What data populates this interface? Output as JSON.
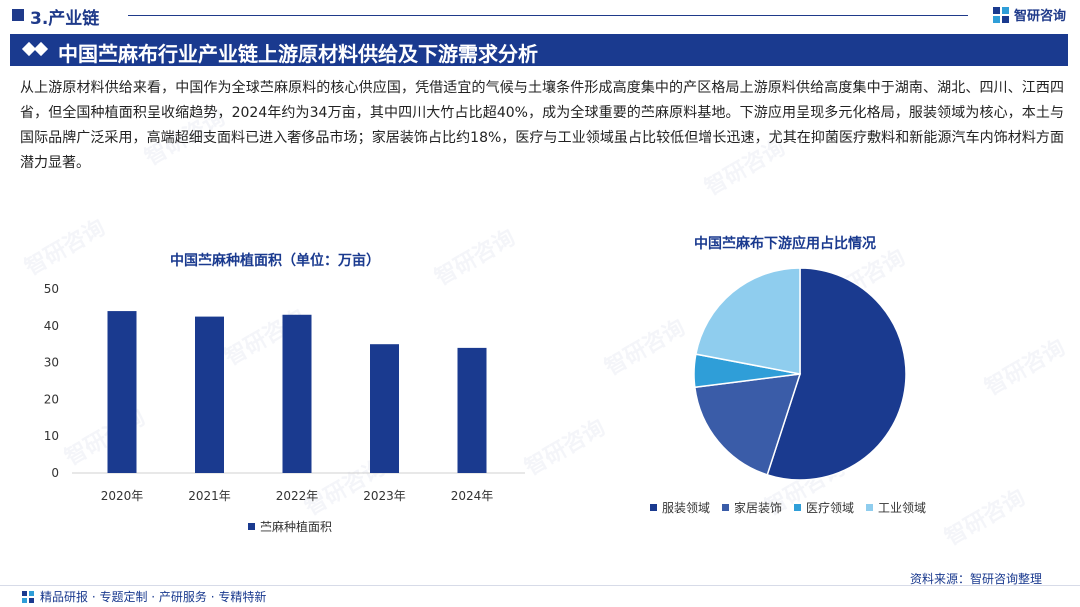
{
  "header": {
    "section": "3.产业链",
    "logo_text": "智研咨询",
    "title": "中国苎麻布行业产业链上游原材料供给及下游需求分析"
  },
  "intro": "从上游原材料供给来看，中国作为全球苎麻原料的核心供应国，凭借适宜的气候与土壤条件形成高度集中的产区格局上游原料供给高度集中于湖南、湖北、四川、江西四省，但全国种植面积呈收缩趋势，2024年约为34万亩，其中四川大竹占比超40%，成为全球重要的苎麻原料基地。下游应用呈现多元化格局，服装领域为核心，本土与国际品牌广泛采用，高端超细支面料已进入奢侈品市场；家居装饰占比约18%，医疗与工业领域虽占比较低但增长迅速，尤其在抑菌医疗敷料和新能源汽车内饰材料方面潜力显著。",
  "watermark": "智研咨询",
  "colors": {
    "brand": "#1a3a8f",
    "bar": "#1a3a8f",
    "pie": [
      "#1a3a8f",
      "#3a5ca8",
      "#2f9ed8",
      "#8fcdee"
    ]
  },
  "chart_data": [
    {
      "type": "bar",
      "title": "中国苎麻种植面积（单位：万亩）",
      "categories": [
        "2020年",
        "2021年",
        "2022年",
        "2023年",
        "2024年"
      ],
      "series": [
        {
          "name": "苎麻种植面积",
          "values": [
            44,
            42.5,
            43,
            35,
            34
          ]
        }
      ],
      "ylim": [
        0,
        50
      ],
      "yticks": [
        "0",
        "10",
        "20",
        "30",
        "40",
        "50"
      ],
      "grid": false,
      "legend": "bottom"
    },
    {
      "type": "pie",
      "title": "中国苎麻布下游应用占比情况",
      "labels": [
        "服装领域",
        "家居装饰",
        "医疗领域",
        "工业领域"
      ],
      "values": [
        55,
        18,
        5,
        22
      ],
      "legend": "bottom"
    }
  ],
  "footer": {
    "tags": "精品研报 · 专题定制 · 产研服务 · 专精特新",
    "source": "资料来源：智研咨询整理"
  }
}
